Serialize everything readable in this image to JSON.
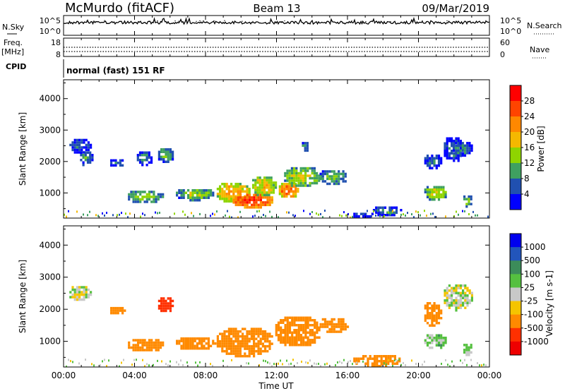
{
  "header": {
    "station": "McMurdo (fitACF)",
    "beam": "Beam 13",
    "date": "09/Mar/2019"
  },
  "noise_panel": {
    "left_label": "N.Sky",
    "right_label": "N.Search",
    "left_ticks": [
      "10^5",
      "10^0"
    ],
    "right_ticks": [
      "10^5",
      "10^0"
    ]
  },
  "freq_panel": {
    "left_label_line1": "Freq.",
    "left_label_line2": "[MHz]",
    "left_ticks": [
      "18",
      "8"
    ],
    "right_label": "Nave",
    "right_ticks": [
      "60",
      "0"
    ]
  },
  "cpid_panel": {
    "label": "CPID",
    "text": "normal (fast) 151 RF"
  },
  "x_axis": {
    "label": "Time UT",
    "ticks": [
      "00:00",
      "04:00",
      "08:00",
      "12:00",
      "16:00",
      "20:00",
      "00:00"
    ]
  },
  "power_colorbar": {
    "label": "Power [dB]",
    "ticks": [
      "28",
      "24",
      "20",
      "16",
      "12",
      "8",
      "4"
    ],
    "colors": [
      "#ff0000",
      "#ff4400",
      "#ff8800",
      "#f5b800",
      "#8fd400",
      "#3fa060",
      "#2050b0",
      "#0000ff"
    ]
  },
  "velocity_colorbar": {
    "label": "Velocity [m s-1]",
    "ticks": [
      "1000",
      "500",
      "100",
      "25",
      "-25",
      "-100",
      "-500",
      "-1000"
    ],
    "colors": [
      "#0000ee",
      "#2255bb",
      "#3c8c5a",
      "#55c040",
      "#c8c8c8",
      "#f5c400",
      "#ff8a00",
      "#ff3000",
      "#ee0000"
    ]
  },
  "chart_data": [
    {
      "type": "heatmap",
      "title": "Power",
      "ylabel": "Slant Range [km]",
      "xlabel": "Time UT",
      "xlim": [
        0,
        24
      ],
      "ylim": [
        200,
        4600
      ],
      "y_ticks": [
        1000,
        2000,
        3000,
        4000
      ],
      "colorbar": "Power [dB]",
      "regions": [
        {
          "t": [
            0.2,
            1.5
          ],
          "r": [
            2300,
            2800
          ],
          "value": 8
        },
        {
          "t": [
            0.8,
            1.6
          ],
          "r": [
            1900,
            2400
          ],
          "value": 10
        },
        {
          "t": [
            2.5,
            3.4
          ],
          "r": [
            1850,
            2150
          ],
          "value": 8
        },
        {
          "t": [
            3.5,
            5.6
          ],
          "r": [
            700,
            1150
          ],
          "value": 14
        },
        {
          "t": [
            4.0,
            5.0
          ],
          "r": [
            1900,
            2400
          ],
          "value": 8
        },
        {
          "t": [
            5.2,
            6.2
          ],
          "r": [
            2000,
            2500
          ],
          "value": 12
        },
        {
          "t": [
            6.2,
            8.5
          ],
          "r": [
            800,
            1200
          ],
          "value": 14
        },
        {
          "t": [
            8.5,
            10.5
          ],
          "r": [
            700,
            1400
          ],
          "value": 20
        },
        {
          "t": [
            9.4,
            11.8
          ],
          "r": [
            550,
            1050
          ],
          "value": 28
        },
        {
          "t": [
            10.5,
            12.0
          ],
          "r": [
            900,
            1600
          ],
          "value": 18
        },
        {
          "t": [
            12.0,
            13.2
          ],
          "r": [
            850,
            1400
          ],
          "value": 24
        },
        {
          "t": [
            12.3,
            14.5
          ],
          "r": [
            1200,
            1900
          ],
          "value": 16
        },
        {
          "t": [
            14.3,
            16.0
          ],
          "r": [
            1300,
            1800
          ],
          "value": 12
        },
        {
          "t": [
            13.3,
            13.8
          ],
          "r": [
            2300,
            2700
          ],
          "value": 8
        },
        {
          "t": [
            16.2,
            17.4
          ],
          "r": [
            250,
            450
          ],
          "value": 6
        },
        {
          "t": [
            17.3,
            19.0
          ],
          "r": [
            300,
            650
          ],
          "value": 8
        },
        {
          "t": [
            20.2,
            21.6
          ],
          "r": [
            800,
            1300
          ],
          "value": 16
        },
        {
          "t": [
            20.2,
            21.3
          ],
          "r": [
            1800,
            2300
          ],
          "value": 8
        },
        {
          "t": [
            21.3,
            22.5
          ],
          "r": [
            2000,
            2850
          ],
          "value": 8
        },
        {
          "t": [
            21.8,
            23.0
          ],
          "r": [
            2200,
            2700
          ],
          "value": 10
        },
        {
          "t": [
            22.4,
            23.0
          ],
          "r": [
            600,
            1000
          ],
          "value": 14
        }
      ]
    },
    {
      "type": "heatmap",
      "title": "Velocity",
      "ylabel": "Slant Range [km]",
      "xlabel": "Time UT",
      "xlim": [
        0,
        24
      ],
      "ylim": [
        200,
        4600
      ],
      "y_ticks": [
        1000,
        2000,
        3000,
        4000
      ],
      "colorbar": "Velocity [m s-1]",
      "regions": [
        {
          "t": [
            0.2,
            1.5
          ],
          "r": [
            2300,
            2800
          ],
          "value": 0
        },
        {
          "t": [
            2.5,
            3.4
          ],
          "r": [
            1850,
            2150
          ],
          "value": -200
        },
        {
          "t": [
            3.5,
            5.6
          ],
          "r": [
            700,
            1150
          ],
          "value": -200
        },
        {
          "t": [
            5.2,
            6.2
          ],
          "r": [
            1950,
            2450
          ],
          "value": -800
        },
        {
          "t": [
            6.2,
            8.5
          ],
          "r": [
            750,
            1200
          ],
          "value": -200
        },
        {
          "t": [
            8.5,
            11.8
          ],
          "r": [
            550,
            1500
          ],
          "value": -300
        },
        {
          "t": [
            11.8,
            14.5
          ],
          "r": [
            850,
            1850
          ],
          "value": -250
        },
        {
          "t": [
            14.3,
            16.0
          ],
          "r": [
            1300,
            1800
          ],
          "value": -200
        },
        {
          "t": [
            16.2,
            19.0
          ],
          "r": [
            250,
            650
          ],
          "value": -200
        },
        {
          "t": [
            20.2,
            21.6
          ],
          "r": [
            800,
            1300
          ],
          "value": 50
        },
        {
          "t": [
            20.2,
            21.3
          ],
          "r": [
            1500,
            2300
          ],
          "value": -300
        },
        {
          "t": [
            21.3,
            23.0
          ],
          "r": [
            2000,
            2850
          ],
          "value": 0
        },
        {
          "t": [
            22.4,
            23.0
          ],
          "r": [
            600,
            1000
          ],
          "value": 50
        }
      ]
    }
  ]
}
